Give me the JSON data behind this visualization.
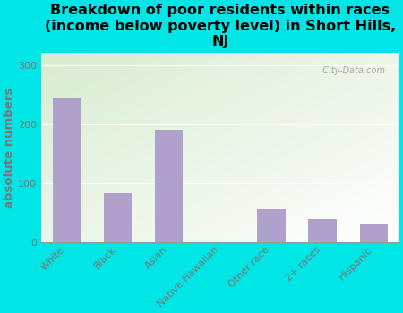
{
  "title": "Breakdown of poor residents within races\n(income below poverty level) in Short Hills,\nNJ",
  "categories": [
    "White",
    "Black",
    "Asian",
    "Native Hawaiian",
    "Other race",
    "2+ races",
    "Hispanic"
  ],
  "values": [
    243,
    83,
    191,
    0,
    57,
    40,
    33
  ],
  "bar_color": "#b0a0cc",
  "ylabel": "absolute numbers",
  "ylim": [
    0,
    320
  ],
  "yticks": [
    0,
    100,
    200,
    300
  ],
  "bg_outer": "#00e5e5",
  "bg_plot_top_left": "#d8ecd0",
  "bg_plot_bottom_right": "#ffffff",
  "watermark": "  City-Data.com",
  "title_fontsize": 11.5,
  "ylabel_fontsize": 9.5,
  "tick_fontsize": 8,
  "label_color": "#777777",
  "title_color": "#000000"
}
